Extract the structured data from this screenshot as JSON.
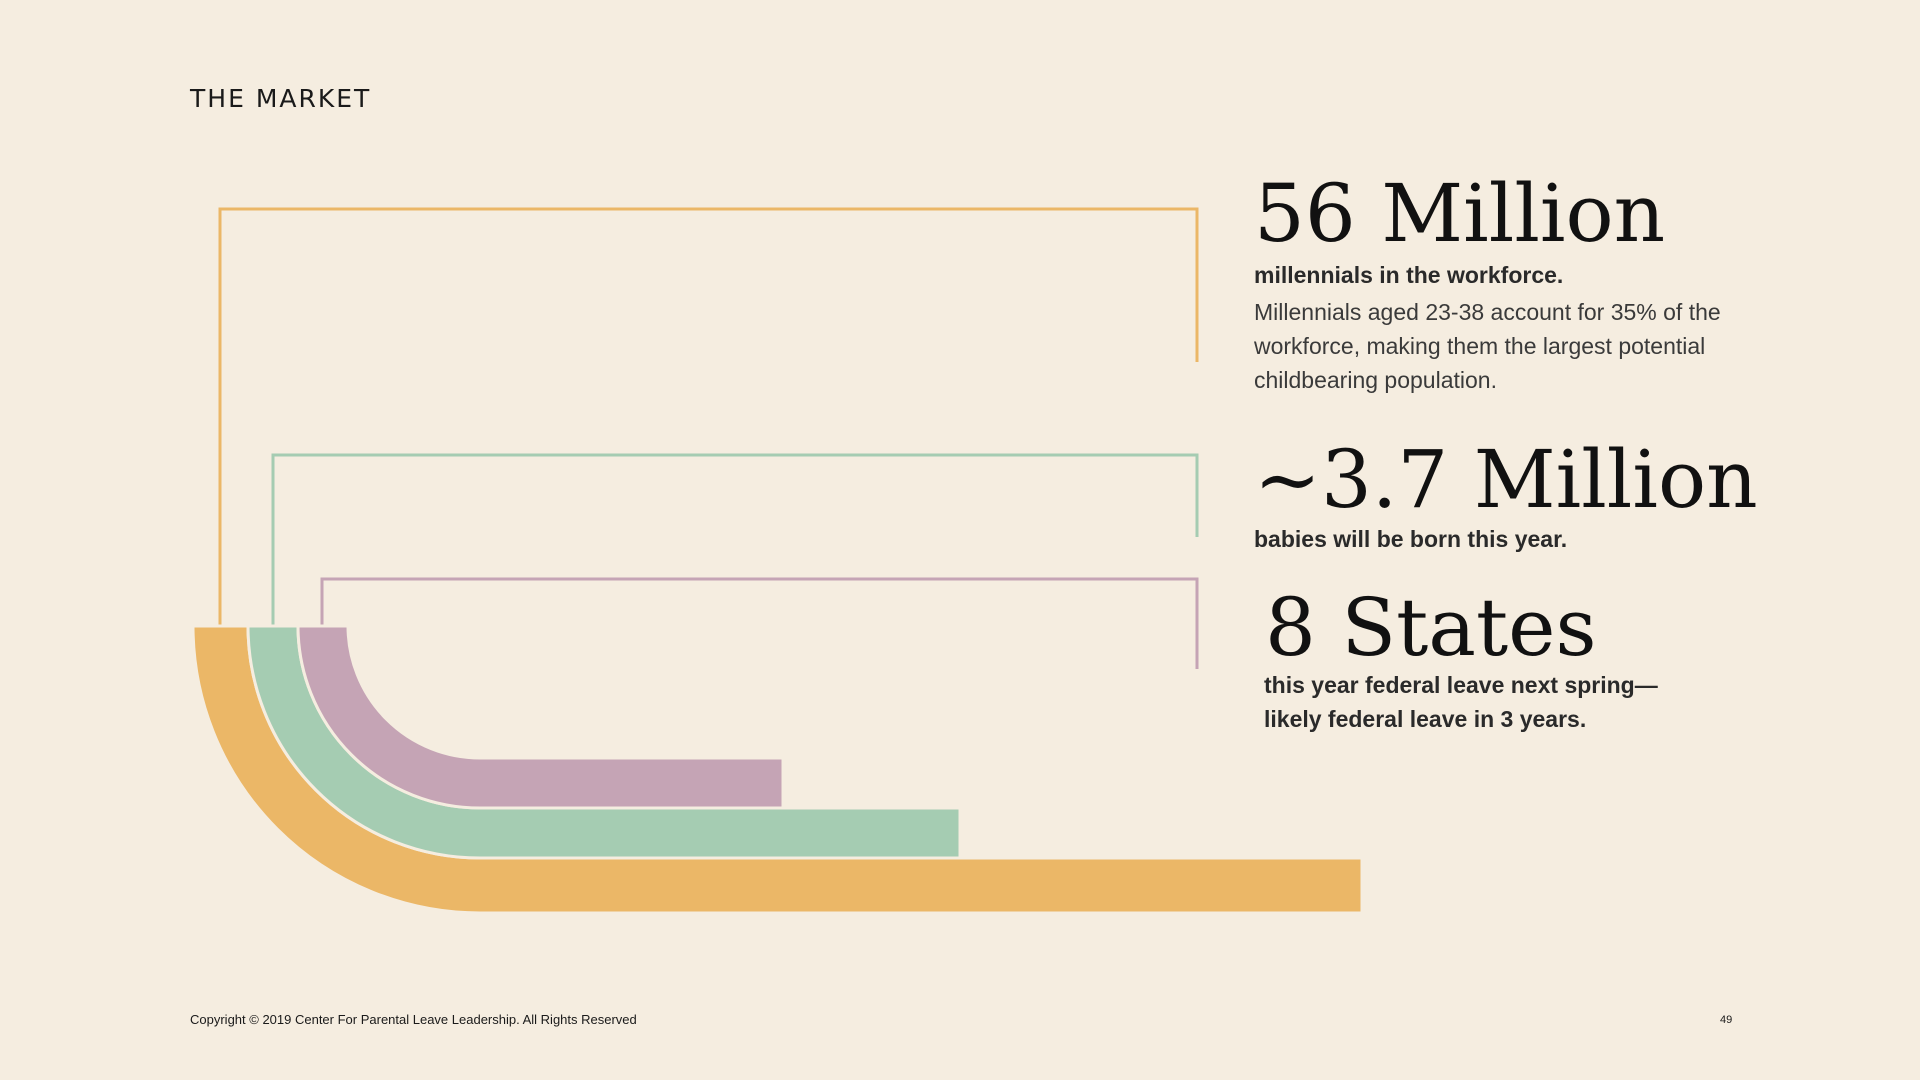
{
  "header": {
    "title": "THE MARKET"
  },
  "stats": [
    {
      "headline": "56 Million",
      "subtitle": "millennials in the workforce.",
      "description": "Millennials aged 23-38 account for 35% of the workforce, making them the largest potential childbearing population.",
      "color": "#ebb767"
    },
    {
      "headline": "~3.7 Million",
      "subtitle": "babies will be born this year.",
      "color": "#a5ccb2"
    },
    {
      "headline": "8 States",
      "subtitle_line1": "this year federal leave next spring—",
      "subtitle_line2": "likely federal leave in 3 years.",
      "color": "#c5a4b5"
    }
  ],
  "footer": {
    "copyright": "Copyright © 2019 Center For Parental Leave Leadership. All Rights Reserved",
    "page_number": "49"
  }
}
